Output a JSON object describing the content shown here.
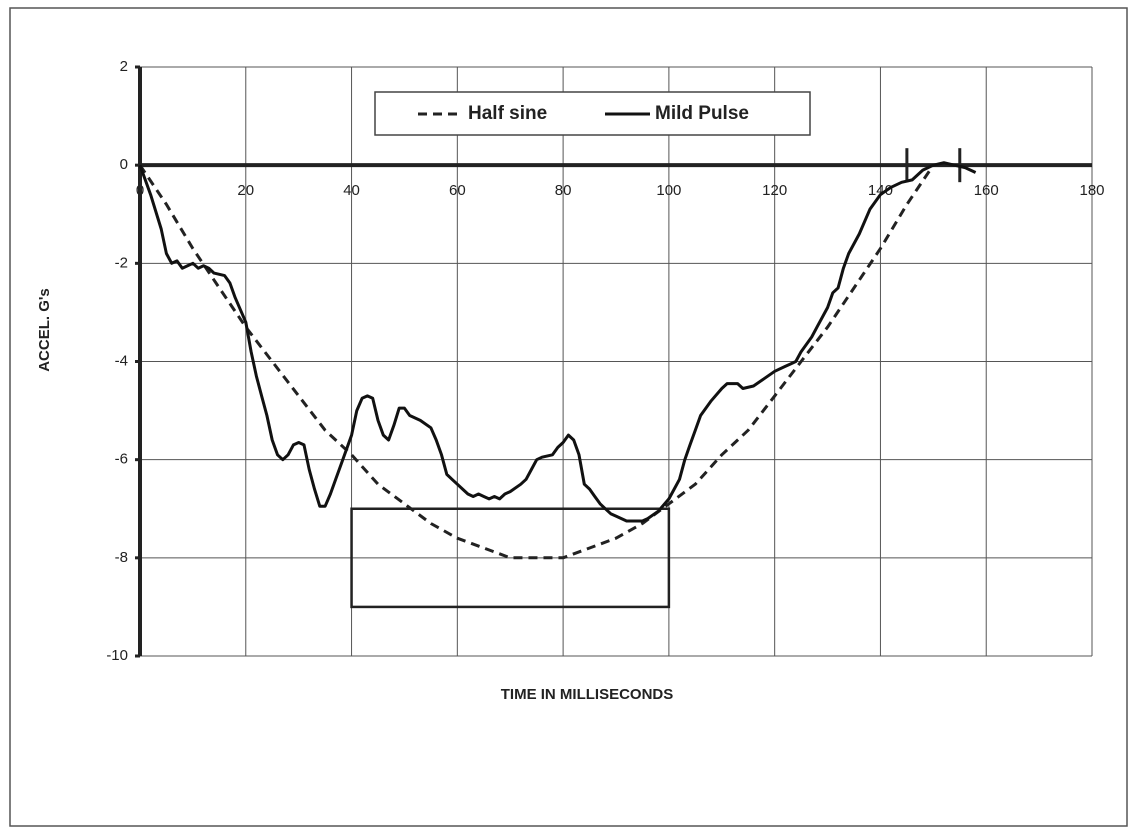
{
  "chart_data": {
    "type": "line",
    "xlabel": "TIME IN MILLISECONDS",
    "ylabel": "ACCEL. G's",
    "xlim": [
      0,
      180
    ],
    "xticks": [
      0,
      20,
      40,
      60,
      80,
      100,
      120,
      140,
      160,
      180
    ],
    "ylim": [
      -10,
      2
    ],
    "yticks": [
      -10,
      -8,
      -6,
      -4,
      -2,
      0,
      2
    ],
    "grid": true,
    "legend": "top",
    "corridor": {
      "x": [
        40,
        100
      ],
      "y": [
        -9,
        -7
      ]
    },
    "markers": [
      145,
      155
    ],
    "series": [
      {
        "name": "Half sine",
        "color": "#222222",
        "dash": true,
        "x": [
          0,
          5,
          10,
          15,
          20,
          25,
          30,
          35,
          40,
          45,
          50,
          55,
          60,
          65,
          70,
          75,
          80,
          85,
          90,
          95,
          100,
          105,
          110,
          115,
          120,
          125,
          130,
          135,
          140,
          145,
          150
        ],
        "values": [
          0,
          -0.8,
          -1.7,
          -2.5,
          -3.3,
          -4,
          -4.7,
          -5.4,
          -5.9,
          -6.5,
          -6.9,
          -7.3,
          -7.6,
          -7.8,
          -8,
          -8,
          -8,
          -7.8,
          -7.6,
          -7.3,
          -6.9,
          -6.5,
          -5.9,
          -5.4,
          -4.7,
          -4,
          -3.3,
          -2.5,
          -1.7,
          -0.8,
          0
        ]
      },
      {
        "name": "Mild Pulse",
        "color": "#111111",
        "dash": false,
        "x": [
          0,
          2,
          4,
          5,
          6,
          7,
          8,
          9,
          10,
          11,
          12,
          13,
          14,
          16,
          17,
          18,
          20,
          21,
          22,
          23,
          24,
          25,
          26,
          27,
          28,
          29,
          30,
          31,
          32,
          33,
          34,
          35,
          36,
          37,
          38,
          39,
          40,
          41,
          42,
          43,
          44,
          45,
          46,
          47,
          48,
          49,
          50,
          51,
          53,
          55,
          56,
          57,
          58,
          59,
          60,
          61,
          62,
          63,
          64,
          65,
          66,
          67,
          68,
          69,
          70,
          72,
          73,
          74,
          75,
          76,
          78,
          79,
          80,
          81,
          82,
          83,
          84,
          85,
          86,
          87,
          88,
          89,
          90,
          92,
          94,
          95,
          96,
          98,
          100,
          101,
          102,
          103,
          104,
          105,
          106,
          107,
          108,
          110,
          111,
          113,
          114,
          116,
          118,
          120,
          122,
          123,
          124,
          125,
          127,
          128,
          130,
          131,
          132,
          133,
          134,
          136,
          138,
          140,
          142,
          144,
          146,
          148,
          150,
          152,
          154,
          156,
          158
        ],
        "values": [
          0,
          -0.6,
          -1.3,
          -1.8,
          -2,
          -1.95,
          -2.1,
          -2.05,
          -2,
          -2.1,
          -2.05,
          -2.1,
          -2.2,
          -2.25,
          -2.4,
          -2.7,
          -3.2,
          -3.8,
          -4.3,
          -4.7,
          -5.1,
          -5.6,
          -5.9,
          -6,
          -5.9,
          -5.7,
          -5.65,
          -5.7,
          -6.2,
          -6.6,
          -6.95,
          -6.95,
          -6.7,
          -6.4,
          -6.1,
          -5.8,
          -5.5,
          -5,
          -4.75,
          -4.7,
          -4.75,
          -5.2,
          -5.5,
          -5.6,
          -5.3,
          -4.95,
          -4.95,
          -5.1,
          -5.2,
          -5.35,
          -5.6,
          -5.9,
          -6.3,
          -6.4,
          -6.5,
          -6.6,
          -6.7,
          -6.75,
          -6.7,
          -6.75,
          -6.8,
          -6.75,
          -6.8,
          -6.7,
          -6.65,
          -6.5,
          -6.4,
          -6.2,
          -6,
          -5.95,
          -5.9,
          -5.75,
          -5.65,
          -5.5,
          -5.6,
          -5.9,
          -6.5,
          -6.6,
          -6.75,
          -6.9,
          -7,
          -7.1,
          -7.15,
          -7.25,
          -7.25,
          -7.25,
          -7.2,
          -7.05,
          -6.8,
          -6.6,
          -6.4,
          -6,
          -5.7,
          -5.4,
          -5.1,
          -4.95,
          -4.8,
          -4.55,
          -4.45,
          -4.45,
          -4.55,
          -4.5,
          -4.35,
          -4.2,
          -4.1,
          -4.05,
          -4,
          -3.8,
          -3.5,
          -3.3,
          -2.9,
          -2.6,
          -2.5,
          -2.1,
          -1.8,
          -1.4,
          -0.9,
          -0.6,
          -0.45,
          -0.35,
          -0.3,
          -0.1,
          0,
          0.05,
          0,
          -0.05,
          -0.15
        ]
      }
    ]
  }
}
